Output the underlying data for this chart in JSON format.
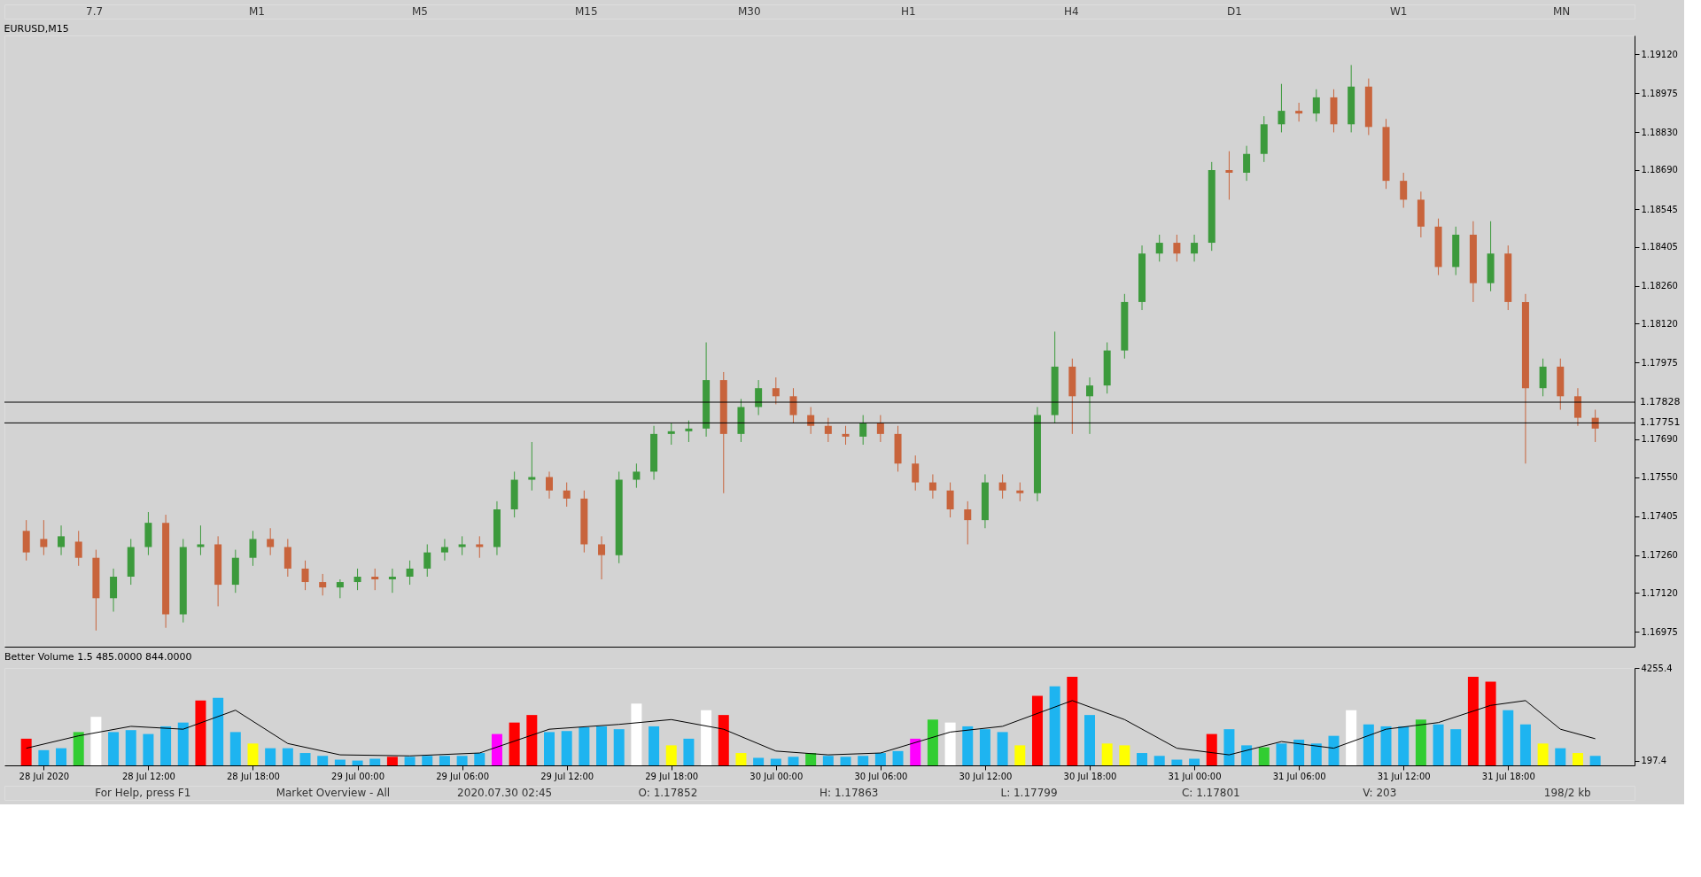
{
  "chart_data": [
    {
      "type": "candlestick",
      "title": "EURUSD,M15",
      "annotations": [
        "7.7",
        "M1",
        "M5",
        "M15",
        "M30",
        "H1",
        "H4",
        "D1",
        "W1",
        "MN"
      ],
      "x": [
        "2020-07-28T05:00",
        "2020-07-28T06:00",
        "2020-07-28T07:00",
        "2020-07-28T08:00",
        "2020-07-28T09:00",
        "2020-07-28T10:00",
        "2020-07-28T11:00",
        "2020-07-28T12:00",
        "2020-07-28T13:00",
        "2020-07-28T14:00",
        "2020-07-28T15:00",
        "2020-07-28T16:00",
        "2020-07-28T17:00",
        "2020-07-28T18:00",
        "2020-07-28T19:00",
        "2020-07-28T20:00",
        "2020-07-28T21:00",
        "2020-07-28T22:00",
        "2020-07-28T23:00",
        "2020-07-29T00:00",
        "2020-07-29T01:00",
        "2020-07-29T02:00",
        "2020-07-29T03:00",
        "2020-07-29T04:00",
        "2020-07-29T05:00",
        "2020-07-29T06:00",
        "2020-07-29T07:00",
        "2020-07-29T08:00",
        "2020-07-29T09:00",
        "2020-07-29T10:00",
        "2020-07-29T11:00",
        "2020-07-29T12:00",
        "2020-07-29T13:00",
        "2020-07-29T14:00",
        "2020-07-29T15:00",
        "2020-07-29T16:00",
        "2020-07-29T17:00",
        "2020-07-29T18:00",
        "2020-07-29T19:00",
        "2020-07-29T20:00",
        "2020-07-29T21:00",
        "2020-07-29T22:00",
        "2020-07-29T23:00",
        "2020-07-30T00:00",
        "2020-07-30T01:00",
        "2020-07-30T02:00",
        "2020-07-30T03:00",
        "2020-07-30T04:00",
        "2020-07-30T05:00",
        "2020-07-30T06:00",
        "2020-07-30T07:00",
        "2020-07-30T08:00",
        "2020-07-30T09:00",
        "2020-07-30T10:00",
        "2020-07-30T11:00",
        "2020-07-30T12:00",
        "2020-07-30T13:00",
        "2020-07-30T14:00",
        "2020-07-30T15:00",
        "2020-07-30T16:00",
        "2020-07-30T17:00",
        "2020-07-30T18:00",
        "2020-07-30T19:00",
        "2020-07-30T20:00",
        "2020-07-30T21:00",
        "2020-07-30T22:00",
        "2020-07-30T23:00",
        "2020-07-31T00:00",
        "2020-07-31T01:00",
        "2020-07-31T02:00",
        "2020-07-31T03:00",
        "2020-07-31T04:00",
        "2020-07-31T05:00",
        "2020-07-31T06:00",
        "2020-07-31T07:00",
        "2020-07-31T08:00",
        "2020-07-31T09:00",
        "2020-07-31T10:00",
        "2020-07-31T11:00",
        "2020-07-31T12:00",
        "2020-07-31T13:00",
        "2020-07-31T14:00",
        "2020-07-31T15:00",
        "2020-07-31T16:00",
        "2020-07-31T17:00",
        "2020-07-31T18:00",
        "2020-07-31T19:00",
        "2020-07-31T20:00",
        "2020-07-31T21:00",
        "2020-07-31T22:00",
        "2020-07-31T23:00"
      ],
      "ohlc": [
        [
          1.1735,
          1.1739,
          1.1724,
          1.1727
        ],
        [
          1.1732,
          1.1739,
          1.1726,
          1.1729
        ],
        [
          1.1729,
          1.1737,
          1.1726,
          1.1733
        ],
        [
          1.1731,
          1.1735,
          1.1722,
          1.1725
        ],
        [
          1.1725,
          1.1728,
          1.1698,
          1.171
        ],
        [
          1.171,
          1.1721,
          1.1705,
          1.1718
        ],
        [
          1.1718,
          1.1732,
          1.1715,
          1.1729
        ],
        [
          1.1729,
          1.1742,
          1.1726,
          1.1738
        ],
        [
          1.1738,
          1.1741,
          1.1699,
          1.1704
        ],
        [
          1.1704,
          1.1732,
          1.1701,
          1.1729
        ],
        [
          1.1729,
          1.1737,
          1.1726,
          1.173
        ],
        [
          1.173,
          1.1733,
          1.1707,
          1.1715
        ],
        [
          1.1715,
          1.1728,
          1.1712,
          1.1725
        ],
        [
          1.1725,
          1.1735,
          1.1722,
          1.1732
        ],
        [
          1.1732,
          1.1736,
          1.1726,
          1.1729
        ],
        [
          1.1729,
          1.1732,
          1.1718,
          1.1721
        ],
        [
          1.1721,
          1.1724,
          1.1713,
          1.1716
        ],
        [
          1.1716,
          1.1719,
          1.1711,
          1.1714
        ],
        [
          1.1714,
          1.1717,
          1.171,
          1.1716
        ],
        [
          1.1716,
          1.1721,
          1.1713,
          1.1718
        ],
        [
          1.1718,
          1.1721,
          1.1713,
          1.1717
        ],
        [
          1.1717,
          1.1721,
          1.1712,
          1.1718
        ],
        [
          1.1718,
          1.1724,
          1.1715,
          1.1721
        ],
        [
          1.1721,
          1.173,
          1.1718,
          1.1727
        ],
        [
          1.1727,
          1.1732,
          1.1724,
          1.1729
        ],
        [
          1.1729,
          1.1733,
          1.1726,
          1.173
        ],
        [
          1.173,
          1.1733,
          1.1725,
          1.1729
        ],
        [
          1.1729,
          1.1746,
          1.1726,
          1.1743
        ],
        [
          1.1743,
          1.1757,
          1.174,
          1.1754
        ],
        [
          1.1754,
          1.1768,
          1.175,
          1.1755
        ],
        [
          1.1755,
          1.1757,
          1.1747,
          1.175
        ],
        [
          1.175,
          1.1753,
          1.1744,
          1.1747
        ],
        [
          1.1747,
          1.175,
          1.1727,
          1.173
        ],
        [
          1.173,
          1.1733,
          1.1717,
          1.1726
        ],
        [
          1.1726,
          1.1757,
          1.1723,
          1.1754
        ],
        [
          1.1754,
          1.176,
          1.1751,
          1.1757
        ],
        [
          1.1757,
          1.1774,
          1.1754,
          1.1771
        ],
        [
          1.1771,
          1.1775,
          1.1767,
          1.1772
        ],
        [
          1.1772,
          1.1776,
          1.1768,
          1.1773
        ],
        [
          1.1773,
          1.1805,
          1.177,
          1.1791
        ],
        [
          1.1791,
          1.1794,
          1.1749,
          1.1771
        ],
        [
          1.1771,
          1.1784,
          1.1768,
          1.1781
        ],
        [
          1.1781,
          1.1791,
          1.1778,
          1.1788
        ],
        [
          1.1788,
          1.1792,
          1.1782,
          1.1785
        ],
        [
          1.1785,
          1.1788,
          1.1775,
          1.1778
        ],
        [
          1.1778,
          1.1781,
          1.1771,
          1.1774
        ],
        [
          1.1774,
          1.1777,
          1.1768,
          1.1771
        ],
        [
          1.1771,
          1.1774,
          1.1767,
          1.177
        ],
        [
          1.177,
          1.1778,
          1.1767,
          1.1775
        ],
        [
          1.1775,
          1.1778,
          1.1768,
          1.1771
        ],
        [
          1.1771,
          1.1774,
          1.1757,
          1.176
        ],
        [
          1.176,
          1.1763,
          1.175,
          1.1753
        ],
        [
          1.1753,
          1.1756,
          1.1747,
          1.175
        ],
        [
          1.175,
          1.1753,
          1.174,
          1.1743
        ],
        [
          1.1743,
          1.1746,
          1.173,
          1.1739
        ],
        [
          1.1739,
          1.1756,
          1.1736,
          1.1753
        ],
        [
          1.1753,
          1.1756,
          1.1747,
          1.175
        ],
        [
          1.175,
          1.1753,
          1.1746,
          1.1749
        ],
        [
          1.1749,
          1.1781,
          1.1746,
          1.1778
        ],
        [
          1.1778,
          1.1809,
          1.1775,
          1.1796
        ],
        [
          1.1796,
          1.1799,
          1.1771,
          1.1785
        ],
        [
          1.1785,
          1.1792,
          1.1771,
          1.1789
        ],
        [
          1.1789,
          1.1805,
          1.1786,
          1.1802
        ],
        [
          1.1802,
          1.1823,
          1.1799,
          1.182
        ],
        [
          1.182,
          1.1841,
          1.1817,
          1.1838
        ],
        [
          1.1838,
          1.1845,
          1.1835,
          1.1842
        ],
        [
          1.1842,
          1.1845,
          1.1835,
          1.1838
        ],
        [
          1.1838,
          1.1845,
          1.1835,
          1.1842
        ],
        [
          1.1842,
          1.1872,
          1.1839,
          1.1869
        ],
        [
          1.1869,
          1.1876,
          1.1858,
          1.1868
        ],
        [
          1.1868,
          1.1878,
          1.1865,
          1.1875
        ],
        [
          1.1875,
          1.1889,
          1.1872,
          1.1886
        ],
        [
          1.1886,
          1.1901,
          1.1883,
          1.1891
        ],
        [
          1.1891,
          1.1894,
          1.1887,
          1.189
        ],
        [
          1.189,
          1.1899,
          1.1887,
          1.1896
        ],
        [
          1.1896,
          1.1899,
          1.1883,
          1.1886
        ],
        [
          1.1886,
          1.1908,
          1.1883,
          1.19
        ],
        [
          1.19,
          1.1903,
          1.1882,
          1.1885
        ],
        [
          1.1885,
          1.1888,
          1.1862,
          1.1865
        ],
        [
          1.1865,
          1.1868,
          1.1855,
          1.1858
        ],
        [
          1.1858,
          1.1861,
          1.1844,
          1.1848
        ],
        [
          1.1848,
          1.1851,
          1.183,
          1.1833
        ],
        [
          1.1833,
          1.1848,
          1.183,
          1.1845
        ],
        [
          1.1845,
          1.185,
          1.182,
          1.1827
        ],
        [
          1.1827,
          1.185,
          1.1824,
          1.1838
        ],
        [
          1.1838,
          1.1841,
          1.1817,
          1.182
        ],
        [
          1.182,
          1.1823,
          1.176,
          1.1788
        ],
        [
          1.1788,
          1.1799,
          1.1785,
          1.1796
        ],
        [
          1.1796,
          1.1799,
          1.178,
          1.1785
        ],
        [
          1.1785,
          1.1788,
          1.1774,
          1.1777
        ],
        [
          1.1777,
          1.178,
          1.1768,
          1.1773
        ]
      ],
      "colors": [
        "#c8643c",
        "#c8643c",
        "#3c9a3c",
        "#c8643c",
        "#c8643c",
        "#3c9a3c",
        "#3c9a3c",
        "#3c9a3c",
        "#c8643c",
        "#3c9a3c",
        "#3c9a3c",
        "#c8643c",
        "#3c9a3c",
        "#3c9a3c",
        "#c8643c",
        "#c8643c",
        "#c8643c",
        "#c8643c",
        "#3c9a3c",
        "#3c9a3c",
        "#c8643c",
        "#3c9a3c",
        "#3c9a3c",
        "#3c9a3c",
        "#3c9a3c",
        "#3c9a3c",
        "#c8643c",
        "#3c9a3c",
        "#3c9a3c",
        "#3c9a3c",
        "#c8643c",
        "#c8643c",
        "#c8643c",
        "#c8643c",
        "#3c9a3c",
        "#3c9a3c",
        "#3c9a3c",
        "#3c9a3c",
        "#3c9a3c",
        "#3c9a3c",
        "#c8643c",
        "#3c9a3c",
        "#3c9a3c",
        "#c8643c",
        "#c8643c",
        "#c8643c",
        "#c8643c",
        "#c8643c",
        "#3c9a3c",
        "#c8643c",
        "#c8643c",
        "#c8643c",
        "#c8643c",
        "#c8643c",
        "#c8643c",
        "#3c9a3c",
        "#c8643c",
        "#c8643c",
        "#3c9a3c",
        "#3c9a3c",
        "#c8643c",
        "#3c9a3c",
        "#3c9a3c",
        "#3c9a3c",
        "#3c9a3c",
        "#3c9a3c",
        "#c8643c",
        "#3c9a3c",
        "#3c9a3c",
        "#c8643c",
        "#3c9a3c",
        "#3c9a3c",
        "#3c9a3c",
        "#c8643c",
        "#3c9a3c",
        "#c8643c",
        "#3c9a3c",
        "#c8643c",
        "#c8643c",
        "#c8643c",
        "#c8643c",
        "#c8643c",
        "#3c9a3c",
        "#c8643c",
        "#3c9a3c",
        "#c8643c",
        "#c8643c",
        "#3c9a3c",
        "#c8643c",
        "#c8643c",
        "#c8643c"
      ],
      "xlim": [
        "2020-07-28T04:00",
        "2020-08-01T01:00"
      ],
      "ylim": [
        1.1692,
        1.1919
      ],
      "yticks": [
        {
          "value": 1.1912,
          "label": "1.19120"
        },
        {
          "value": 1.18975,
          "label": "1.18975"
        },
        {
          "value": 1.1883,
          "label": "1.18830"
        },
        {
          "value": 1.1869,
          "label": "1.18690"
        },
        {
          "value": 1.18545,
          "label": "1.18545"
        },
        {
          "value": 1.18405,
          "label": "1.18405"
        },
        {
          "value": 1.1826,
          "label": "1.18260"
        },
        {
          "value": 1.1812,
          "label": "1.18120"
        },
        {
          "value": 1.17975,
          "label": "1.17975"
        },
        {
          "value": 1.1769,
          "label": "1.17690"
        },
        {
          "value": 1.1755,
          "label": "1.17550"
        },
        {
          "value": 1.17405,
          "label": "1.17405"
        },
        {
          "value": 1.1726,
          "label": "1.17260"
        },
        {
          "value": 1.1712,
          "label": "1.17120"
        },
        {
          "value": 1.16975,
          "label": "1.16975"
        }
      ],
      "ref_lines": [
        {
          "axis": "y",
          "value": 1.17828,
          "label": "1.17828",
          "color": "#000000"
        },
        {
          "axis": "y",
          "value": 1.17751,
          "label": "1.17751",
          "color": "#000000"
        }
      ],
      "tick_labels": "y",
      "grid": false
    },
    {
      "type": "bar",
      "title": "Better Volume 1.5 485.0000 844.0000",
      "annotations": [
        "For Help, press F1",
        "Market Overview - All",
        "2020.07.30 02:45",
        "O: 1.17852",
        "H: 1.17863",
        "L: 1.17799",
        "C: 1.17801",
        "V: 203",
        "198/2 kb"
      ],
      "x": [
        "2020-07-28T05:00",
        "2020-07-28T06:00",
        "2020-07-28T07:00",
        "2020-07-28T08:00",
        "2020-07-28T09:00",
        "2020-07-28T10:00",
        "2020-07-28T11:00",
        "2020-07-28T12:00",
        "2020-07-28T13:00",
        "2020-07-28T14:00",
        "2020-07-28T15:00",
        "2020-07-28T16:00",
        "2020-07-28T17:00",
        "2020-07-28T18:00",
        "2020-07-28T19:00",
        "2020-07-28T20:00",
        "2020-07-28T21:00",
        "2020-07-28T22:00",
        "2020-07-28T23:00",
        "2020-07-29T00:00",
        "2020-07-29T01:00",
        "2020-07-29T02:00",
        "2020-07-29T03:00",
        "2020-07-29T04:00",
        "2020-07-29T05:00",
        "2020-07-29T06:00",
        "2020-07-29T07:00",
        "2020-07-29T08:00",
        "2020-07-29T09:00",
        "2020-07-29T10:00",
        "2020-07-29T11:00",
        "2020-07-29T12:00",
        "2020-07-29T13:00",
        "2020-07-29T14:00",
        "2020-07-29T15:00",
        "2020-07-29T16:00",
        "2020-07-29T17:00",
        "2020-07-29T18:00",
        "2020-07-29T19:00",
        "2020-07-29T20:00",
        "2020-07-29T21:00",
        "2020-07-29T22:00",
        "2020-07-29T23:00",
        "2020-07-30T00:00",
        "2020-07-30T01:00",
        "2020-07-30T02:00",
        "2020-07-30T03:00",
        "2020-07-30T04:00",
        "2020-07-30T05:00",
        "2020-07-30T06:00",
        "2020-07-30T07:00",
        "2020-07-30T08:00",
        "2020-07-30T09:00",
        "2020-07-30T10:00",
        "2020-07-30T11:00",
        "2020-07-30T12:00",
        "2020-07-30T13:00",
        "2020-07-30T14:00",
        "2020-07-30T15:00",
        "2020-07-30T16:00",
        "2020-07-30T17:00",
        "2020-07-30T18:00",
        "2020-07-30T19:00",
        "2020-07-30T20:00",
        "2020-07-30T21:00",
        "2020-07-30T22:00",
        "2020-07-30T23:00",
        "2020-07-31T00:00",
        "2020-07-31T01:00",
        "2020-07-31T02:00",
        "2020-07-31T03:00",
        "2020-07-31T04:00",
        "2020-07-31T05:00",
        "2020-07-31T06:00",
        "2020-07-31T07:00",
        "2020-07-31T08:00",
        "2020-07-31T09:00",
        "2020-07-31T10:00",
        "2020-07-31T11:00",
        "2020-07-31T12:00",
        "2020-07-31T13:00",
        "2020-07-31T14:00",
        "2020-07-31T15:00",
        "2020-07-31T16:00",
        "2020-07-31T17:00",
        "2020-07-31T18:00",
        "2020-07-31T19:00",
        "2020-07-31T20:00",
        "2020-07-31T21:00",
        "2020-07-31T22:00",
        "2020-07-31T23:00"
      ],
      "series": [
        {
          "type": "bar",
          "values": [
            1165,
            665,
            750,
            1455,
            2120,
            1455,
            1540,
            1370,
            1705,
            1870,
            2830,
            2950,
            1455,
            955,
            750,
            750,
            540,
            415,
            250,
            210,
            290,
            375,
            375,
            415,
            415,
            415,
            540,
            1370,
            1870,
            2200,
            1455,
            1500,
            1665,
            1705,
            1580,
            2700,
            1705,
            875,
            1165,
            2410,
            2200,
            540,
            330,
            290,
            375,
            540,
            415,
            375,
            415,
            540,
            625,
            1165,
            2000,
            1870,
            1705,
            1580,
            1455,
            875,
            3035,
            3450,
            3870,
            2200,
            955,
            875,
            540,
            415,
            250,
            290,
            1370,
            1580,
            875,
            790,
            955,
            1125,
            955,
            1290,
            2410,
            1790,
            1705,
            1705,
            2000,
            1790,
            1580,
            3870,
            3660,
            2410,
            1790,
            955,
            750,
            540,
            415
          ],
          "colors": [
            "#ff0000",
            "#1eb4f0",
            "#1eb4f0",
            "#32cd32",
            "#ffffff",
            "#1eb4f0",
            "#1eb4f0",
            "#1eb4f0",
            "#1eb4f0",
            "#1eb4f0",
            "#ff0000",
            "#1eb4f0",
            "#1eb4f0",
            "#ffff00",
            "#1eb4f0",
            "#1eb4f0",
            "#1eb4f0",
            "#1eb4f0",
            "#1eb4f0",
            "#1eb4f0",
            "#1eb4f0",
            "#ff0000",
            "#1eb4f0",
            "#1eb4f0",
            "#1eb4f0",
            "#1eb4f0",
            "#1eb4f0",
            "#ff00ff",
            "#ff0000",
            "#ff0000",
            "#1eb4f0",
            "#1eb4f0",
            "#1eb4f0",
            "#1eb4f0",
            "#1eb4f0",
            "#ffffff",
            "#1eb4f0",
            "#ffff00",
            "#1eb4f0",
            "#ffffff",
            "#ff0000",
            "#ffff00",
            "#1eb4f0",
            "#1eb4f0",
            "#1eb4f0",
            "#32cd32",
            "#1eb4f0",
            "#1eb4f0",
            "#1eb4f0",
            "#1eb4f0",
            "#1eb4f0",
            "#ff00ff",
            "#32cd32",
            "#ffffff",
            "#1eb4f0",
            "#1eb4f0",
            "#1eb4f0",
            "#ffff00",
            "#ff0000",
            "#1eb4f0",
            "#ff0000",
            "#1eb4f0",
            "#ffff00",
            "#ffff00",
            "#1eb4f0",
            "#1eb4f0",
            "#1eb4f0",
            "#1eb4f0",
            "#ff0000",
            "#1eb4f0",
            "#1eb4f0",
            "#32cd32",
            "#1eb4f0",
            "#1eb4f0",
            "#1eb4f0",
            "#1eb4f0",
            "#ffffff",
            "#1eb4f0",
            "#1eb4f0",
            "#1eb4f0",
            "#32cd32",
            "#1eb4f0",
            "#1eb4f0",
            "#ff0000",
            "#ff0000",
            "#1eb4f0",
            "#1eb4f0",
            "#ffff00",
            "#1eb4f0",
            "#ffff00",
            "#1eb4f0"
          ]
        },
        {
          "type": "line",
          "color": "#000000",
          "x": [
            "2020-07-28T05:00",
            "2020-07-28T08:00",
            "2020-07-28T11:00",
            "2020-07-28T14:00",
            "2020-07-28T17:00",
            "2020-07-28T20:00",
            "2020-07-28T23:00",
            "2020-07-29T03:00",
            "2020-07-29T07:00",
            "2020-07-29T11:00",
            "2020-07-29T15:00",
            "2020-07-29T18:00",
            "2020-07-29T21:00",
            "2020-07-30T00:00",
            "2020-07-30T03:00",
            "2020-07-30T06:00",
            "2020-07-30T10:00",
            "2020-07-30T13:00",
            "2020-07-30T17:00",
            "2020-07-30T20:00",
            "2020-07-30T23:00",
            "2020-07-31T02:00",
            "2020-07-31T05:00",
            "2020-07-31T08:00",
            "2020-07-31T11:00",
            "2020-07-31T14:00",
            "2020-07-31T17:00",
            "2020-07-31T19:00",
            "2020-07-31T21:00",
            "2020-07-31T23:00"
          ],
          "values": [
            750,
            1290,
            1705,
            1580,
            2410,
            955,
            460,
            415,
            540,
            1580,
            1790,
            2000,
            1580,
            625,
            460,
            540,
            1455,
            1705,
            2830,
            2000,
            750,
            460,
            1040,
            750,
            1580,
            1870,
            2620,
            2830,
            1580,
            1165
          ]
        }
      ],
      "xlim": [
        "2020-07-28T04:00",
        "2020-08-01T01:00"
      ],
      "xticks": [
        {
          "value": "2020-07-28T06:00",
          "label": "28 Jul 2020"
        },
        {
          "value": "2020-07-28T12:00",
          "label": "28 Jul 12:00"
        },
        {
          "value": "2020-07-28T18:00",
          "label": "28 Jul 18:00"
        },
        {
          "value": "2020-07-29T00:00",
          "label": "29 Jul 00:00"
        },
        {
          "value": "2020-07-29T06:00",
          "label": "29 Jul 06:00"
        },
        {
          "value": "2020-07-29T12:00",
          "label": "29 Jul 12:00"
        },
        {
          "value": "2020-07-29T18:00",
          "label": "29 Jul 18:00"
        },
        {
          "value": "2020-07-30T00:00",
          "label": "30 Jul 00:00"
        },
        {
          "value": "2020-07-30T06:00",
          "label": "30 Jul 06:00"
        },
        {
          "value": "2020-07-30T12:00",
          "label": "30 Jul 12:00"
        },
        {
          "value": "2020-07-30T18:00",
          "label": "30 Jul 18:00"
        },
        {
          "value": "2020-07-31T00:00",
          "label": "31 Jul 00:00"
        },
        {
          "value": "2020-07-31T06:00",
          "label": "31 Jul 06:00"
        },
        {
          "value": "2020-07-31T12:00",
          "label": "31 Jul 12:00"
        },
        {
          "value": "2020-07-31T18:00",
          "label": "31 Jul 18:00"
        }
      ],
      "ylim": [
        0,
        4255.4
      ],
      "yticks": [
        197.4,
        4255.4
      ],
      "grid": false
    }
  ]
}
